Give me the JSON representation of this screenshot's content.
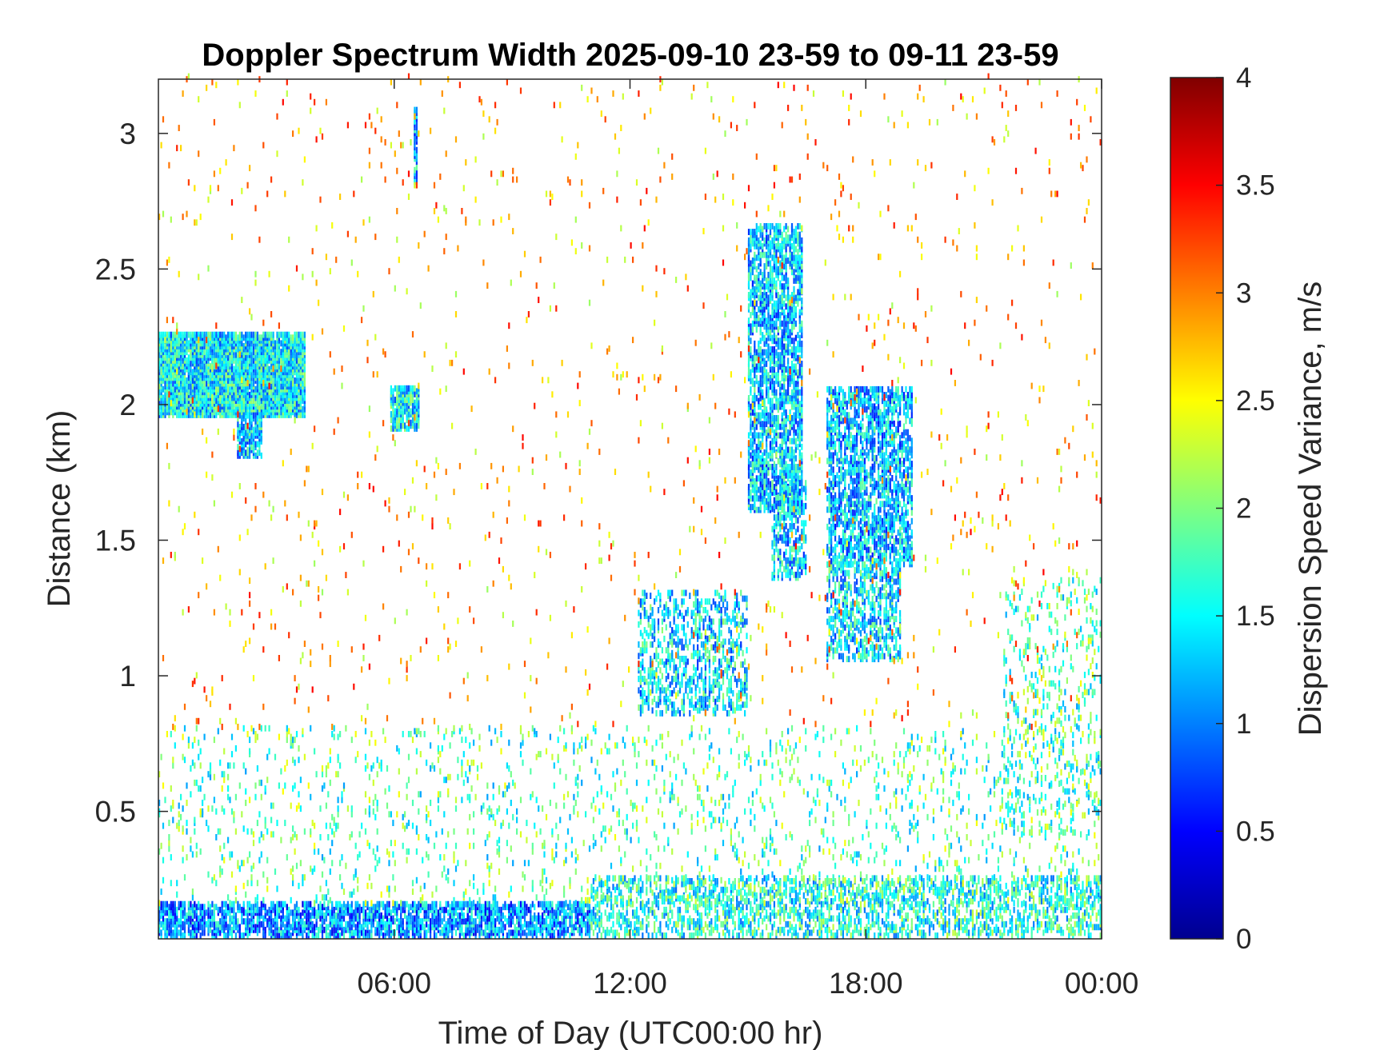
{
  "chart_data": {
    "type": "heatmap",
    "title": "Doppler Spectrum Width 2025-09-10 23-59 to 09-11 23-59",
    "xlabel": "Time of Day (UTC00:00 hr)",
    "ylabel": "Distance (km)",
    "x_ticks": [
      {
        "value": 6,
        "label": "06:00"
      },
      {
        "value": 12,
        "label": "12:00"
      },
      {
        "value": 18,
        "label": "18:00"
      },
      {
        "value": 24,
        "label": "00:00"
      }
    ],
    "y_ticks": [
      {
        "value": 0.5,
        "label": "0.5"
      },
      {
        "value": 1,
        "label": "1"
      },
      {
        "value": 1.5,
        "label": "1.5"
      },
      {
        "value": 2,
        "label": "2"
      },
      {
        "value": 2.5,
        "label": "2.5"
      },
      {
        "value": 3,
        "label": "3"
      }
    ],
    "xlim": [
      0,
      24
    ],
    "ylim": [
      0.03,
      3.2
    ],
    "colorbar": {
      "label": "Dispersion Speed Variance, m/s",
      "colormap": "jet",
      "range": [
        0,
        4
      ],
      "ticks": [
        {
          "value": 0,
          "label": "0"
        },
        {
          "value": 0.5,
          "label": "0.5"
        },
        {
          "value": 1,
          "label": "1"
        },
        {
          "value": 1.5,
          "label": "1.5"
        },
        {
          "value": 2,
          "label": "2"
        },
        {
          "value": 2.5,
          "label": "2.5"
        },
        {
          "value": 3,
          "label": "3"
        },
        {
          "value": 3.5,
          "label": "3.5"
        },
        {
          "value": 4,
          "label": "4"
        }
      ]
    },
    "regions": [
      {
        "t0": 0.0,
        "t1": 3.7,
        "h0": 1.95,
        "h1": 2.25,
        "v": 1.45,
        "density": 0.9
      },
      {
        "t0": 2.0,
        "t1": 2.6,
        "h0": 1.8,
        "h1": 1.95,
        "v": 1.35,
        "density": 0.7
      },
      {
        "t0": 5.9,
        "t1": 6.6,
        "h0": 1.9,
        "h1": 2.05,
        "v": 1.45,
        "density": 0.7
      },
      {
        "t0": 6.5,
        "t1": 6.6,
        "h0": 2.8,
        "h1": 3.08,
        "v": 1.2,
        "density": 0.8
      },
      {
        "t0": 15.0,
        "t1": 16.4,
        "h0": 1.6,
        "h1": 2.65,
        "v": 1.3,
        "density": 0.55
      },
      {
        "t0": 15.6,
        "t1": 16.5,
        "h0": 1.35,
        "h1": 1.7,
        "v": 1.3,
        "density": 0.4
      },
      {
        "t0": 17.0,
        "t1": 19.2,
        "h0": 1.4,
        "h1": 2.05,
        "v": 1.25,
        "density": 0.5
      },
      {
        "t0": 17.0,
        "t1": 18.9,
        "h0": 1.05,
        "h1": 1.4,
        "v": 1.4,
        "density": 0.35
      },
      {
        "t0": 12.2,
        "t1": 15.0,
        "h0": 0.85,
        "h1": 1.3,
        "v": 1.4,
        "density": 0.3
      },
      {
        "t0": 0.0,
        "t1": 11.0,
        "h0": 0.03,
        "h1": 0.15,
        "v": 1.1,
        "density": 0.6
      },
      {
        "t0": 11.0,
        "t1": 24.0,
        "h0": 0.03,
        "h1": 0.25,
        "v": 1.6,
        "density": 0.35
      },
      {
        "t0": 0.0,
        "t1": 24.0,
        "h0": 0.15,
        "h1": 0.8,
        "v": 1.8,
        "density": 0.06
      },
      {
        "t0": 21.5,
        "t1": 24.0,
        "h0": 0.4,
        "h1": 1.35,
        "v": 1.8,
        "density": 0.1
      },
      {
        "t0": 0.0,
        "t1": 24.0,
        "h0": 0.8,
        "h1": 3.2,
        "v": 2.8,
        "density": 0.012
      }
    ]
  }
}
